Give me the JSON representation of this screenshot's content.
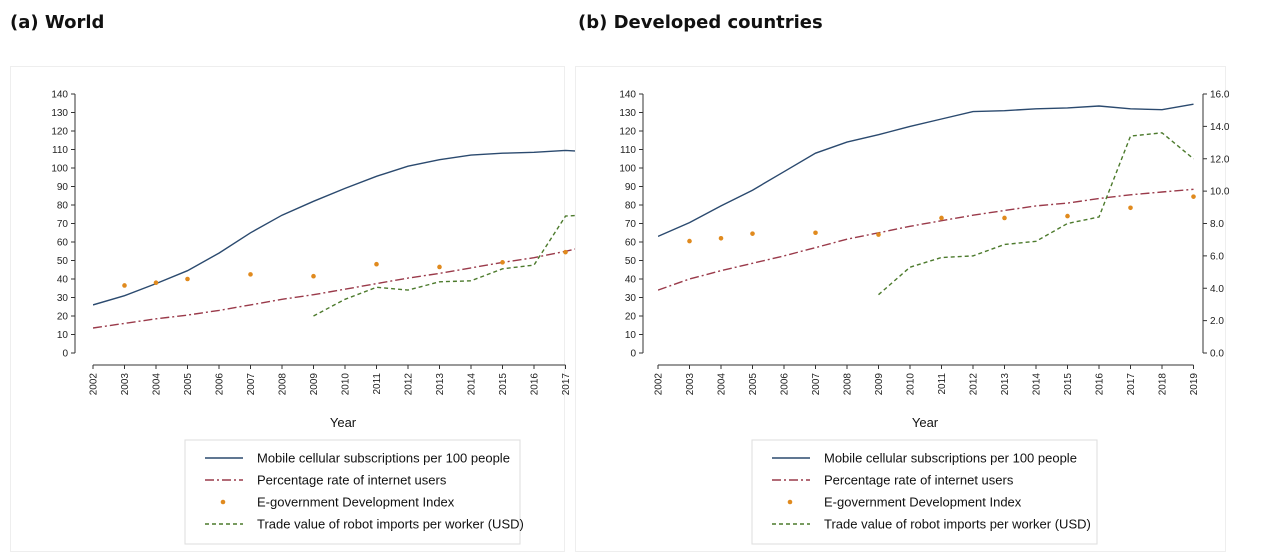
{
  "panels": [
    {
      "title": "(a) World"
    },
    {
      "title": "(b) Developed countries"
    }
  ],
  "colors": {
    "mobile": "#2b4a6f",
    "internet": "#9a3a4a",
    "egov": "#e08a1e",
    "robot": "#4c7a2c"
  },
  "legend": [
    {
      "label": "Mobile cellular subscriptions per 100 people",
      "style": "solid"
    },
    {
      "label": "Percentage rate of internet users",
      "style": "dashdot"
    },
    {
      "label": "E-government Development Index",
      "style": "dot"
    },
    {
      "label": "Trade value of robot imports per worker (USD)",
      "style": "dash"
    }
  ],
  "chart_data": [
    {
      "type": "line",
      "title": "(a) World",
      "xlabel": "Year",
      "categories": [
        "2002",
        "2003",
        "2004",
        "2005",
        "2006",
        "2007",
        "2008",
        "2009",
        "2010",
        "2011",
        "2012",
        "2013",
        "2014",
        "2015",
        "2016",
        "2017"
      ],
      "x": [
        2002,
        2003,
        2004,
        2005,
        2006,
        2007,
        2008,
        2009,
        2010,
        2011,
        2012,
        2013,
        2014,
        2015,
        2016,
        2017
      ],
      "xlim": [
        2002,
        2017.5
      ],
      "ylim": [
        0,
        140
      ],
      "yticks": [
        "0",
        "10",
        "20",
        "30",
        "40",
        "50",
        "60",
        "70",
        "80",
        "90",
        "100",
        "110",
        "120",
        "130",
        "140"
      ],
      "grid": false,
      "legend_position": "bottom",
      "series": [
        {
          "name": "Mobile cellular subscriptions per 100 people",
          "style": "solid",
          "x": [
            2002,
            2003,
            2004,
            2005,
            2006,
            2007,
            2008,
            2009,
            2010,
            2011,
            2012,
            2013,
            2014,
            2015,
            2016,
            2017,
            2017.5
          ],
          "values": [
            26,
            31,
            37.5,
            44.5,
            54,
            65,
            74.5,
            82,
            89,
            95.5,
            101,
            104.5,
            107,
            108,
            108.5,
            109.5,
            109
          ]
        },
        {
          "name": "Percentage rate of internet users",
          "style": "dashdot",
          "x": [
            2002,
            2003,
            2004,
            2005,
            2006,
            2007,
            2008,
            2009,
            2010,
            2011,
            2012,
            2013,
            2014,
            2015,
            2016,
            2017,
            2017.5
          ],
          "values": [
            13.5,
            16,
            18.5,
            20.5,
            23,
            26,
            29,
            31.5,
            34.5,
            37.5,
            40.5,
            43,
            46,
            49,
            51.5,
            55,
            57
          ]
        },
        {
          "name": "E-government Development Index",
          "style": "dot",
          "x": [
            2003,
            2004,
            2005,
            2007,
            2009,
            2011,
            2013,
            2015,
            2017
          ],
          "values": [
            36.5,
            38,
            40,
            42.5,
            41.5,
            48,
            46.5,
            49,
            54.5
          ]
        },
        {
          "name": "Trade value of robot imports per worker (USD)",
          "style": "dash",
          "x": [
            2009,
            2010,
            2011,
            2012,
            2013,
            2014,
            2015,
            2016,
            2017,
            2017.5
          ],
          "values": [
            20,
            29,
            35.5,
            34,
            38.5,
            39,
            45.5,
            47.5,
            74,
            74.5
          ]
        }
      ]
    },
    {
      "type": "line",
      "title": "(b) Developed countries",
      "xlabel": "Year",
      "categories": [
        "2002",
        "2003",
        "2004",
        "2005",
        "2006",
        "2007",
        "2008",
        "2009",
        "2010",
        "2011",
        "2012",
        "2013",
        "2014",
        "2015",
        "2016",
        "2017",
        "2018",
        "2019"
      ],
      "x": [
        2002,
        2003,
        2004,
        2005,
        2006,
        2007,
        2008,
        2009,
        2010,
        2011,
        2012,
        2013,
        2014,
        2015,
        2016,
        2017,
        2018,
        2019
      ],
      "xlim": [
        2002,
        2019
      ],
      "ylim": [
        0,
        140
      ],
      "yticks": [
        "0",
        "10",
        "20",
        "30",
        "40",
        "50",
        "60",
        "70",
        "80",
        "90",
        "100",
        "110",
        "120",
        "130",
        "140"
      ],
      "y2lim": [
        0,
        16
      ],
      "y2ticks": [
        "0.0",
        "2.0",
        "4.0",
        "6.0",
        "8.0",
        "10.0",
        "12.0",
        "14.0",
        "16.0"
      ],
      "grid": false,
      "legend_position": "bottom",
      "series": [
        {
          "name": "Mobile cellular subscriptions per 100 people",
          "style": "solid",
          "axis": "left",
          "x": [
            2002,
            2003,
            2004,
            2005,
            2006,
            2007,
            2008,
            2009,
            2010,
            2011,
            2012,
            2013,
            2014,
            2015,
            2016,
            2017,
            2018,
            2019
          ],
          "values": [
            63,
            70.5,
            79.5,
            88,
            98,
            108,
            114,
            118,
            122.5,
            126.5,
            130.5,
            131,
            132,
            132.5,
            133.5,
            132,
            131.5,
            134.5
          ]
        },
        {
          "name": "Percentage rate of internet users",
          "style": "dashdot",
          "axis": "left",
          "x": [
            2002,
            2003,
            2004,
            2005,
            2006,
            2007,
            2008,
            2009,
            2010,
            2011,
            2012,
            2013,
            2014,
            2015,
            2016,
            2017,
            2018,
            2019
          ],
          "values": [
            34,
            40,
            44.5,
            48.5,
            52.5,
            57,
            61.5,
            65,
            68.5,
            71.5,
            74.5,
            77,
            79.5,
            81,
            83.5,
            85.5,
            87,
            88.5
          ]
        },
        {
          "name": "E-government Development Index",
          "style": "dot",
          "axis": "left",
          "x": [
            2003,
            2004,
            2005,
            2007,
            2009,
            2011,
            2013,
            2015,
            2017,
            2019
          ],
          "values": [
            60.5,
            62,
            64.5,
            65,
            64,
            73,
            73,
            74,
            78.5,
            84.5
          ]
        },
        {
          "name": "Trade value of robot imports per worker (USD)",
          "style": "dash",
          "axis": "right",
          "x": [
            2009,
            2010,
            2011,
            2012,
            2013,
            2014,
            2015,
            2016,
            2017,
            2018,
            2019
          ],
          "values": [
            3.6,
            5.3,
            5.9,
            6.0,
            6.7,
            6.9,
            8.0,
            8.4,
            13.4,
            13.6,
            12.0
          ]
        }
      ]
    }
  ]
}
